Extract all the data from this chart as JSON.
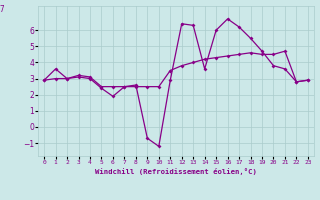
{
  "xlabel": "Windchill (Refroidissement éolien,°C)",
  "x": [
    0,
    1,
    2,
    3,
    4,
    5,
    6,
    7,
    8,
    9,
    10,
    11,
    12,
    13,
    14,
    15,
    16,
    17,
    18,
    19,
    20,
    21,
    22,
    23
  ],
  "line1": [
    2.9,
    3.6,
    3.0,
    3.1,
    3.0,
    2.4,
    1.9,
    2.5,
    2.6,
    -0.7,
    -1.2,
    2.9,
    6.4,
    6.3,
    3.6,
    6.0,
    6.7,
    6.2,
    5.5,
    4.7,
    3.8,
    3.6,
    2.8,
    2.9
  ],
  "line2": [
    2.9,
    3.0,
    3.0,
    3.2,
    3.1,
    2.5,
    2.5,
    2.5,
    2.5,
    2.5,
    2.5,
    3.5,
    3.8,
    4.0,
    4.2,
    4.3,
    4.4,
    4.5,
    4.6,
    4.5,
    4.5,
    4.7,
    2.8,
    2.9
  ],
  "line_color": "#880088",
  "bg_color": "#cce8e8",
  "grid_color": "#aacccc",
  "ylim": [
    -1.8,
    7.5
  ],
  "yticks": [
    -1,
    0,
    1,
    2,
    3,
    4,
    5,
    6
  ],
  "ytick_extra": 7,
  "marker": "D",
  "markersize": 2.0,
  "linewidth": 0.9
}
